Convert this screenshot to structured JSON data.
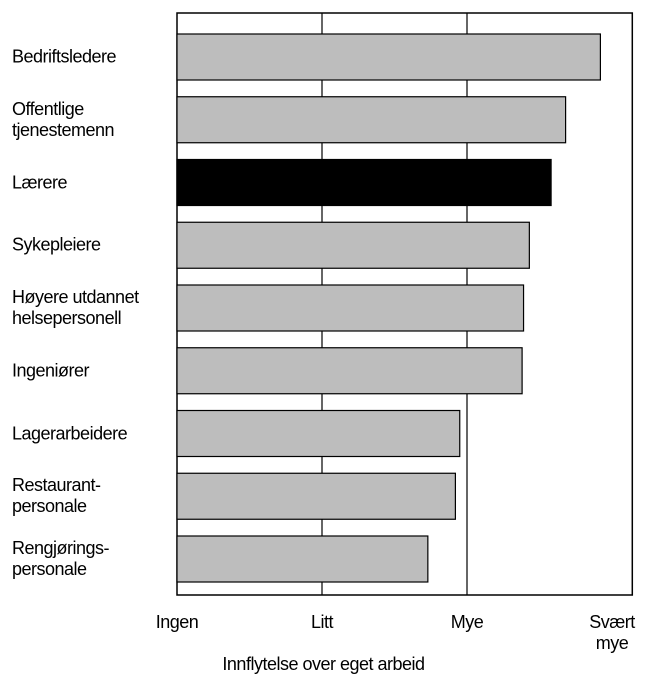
{
  "chart_data": {
    "type": "barh",
    "xlabel": "Innflytelse over eget arbeid",
    "categories": [
      "Bedriftsledere",
      "Offentlige tjenestemenn",
      "Lærere",
      "Sykepleiere",
      "Høyere utdannet helsepersonell",
      "Ingeniører",
      "Lagerarbeidere",
      "Restaurant-personale",
      "Rengjørings-personale"
    ],
    "values": [
      2.92,
      2.68,
      2.58,
      2.43,
      2.39,
      2.38,
      1.95,
      1.92,
      1.73
    ],
    "colors": [
      "#bdbdbd",
      "#bdbdbd",
      "#000000",
      "#bdbdbd",
      "#bdbdbd",
      "#bdbdbd",
      "#bdbdbd",
      "#bdbdbd",
      "#bdbdbd"
    ],
    "xlim": [
      0,
      3.14
    ],
    "xticks": [
      {
        "value": 0,
        "label": "Ingen"
      },
      {
        "value": 1,
        "label": "Litt"
      },
      {
        "value": 2,
        "label": "Mye"
      },
      {
        "value": 3,
        "label": "Svært mye"
      }
    ],
    "grid": true
  }
}
